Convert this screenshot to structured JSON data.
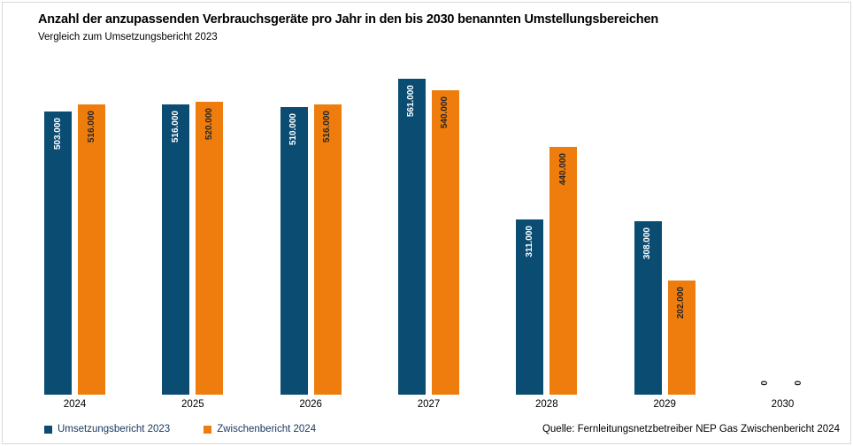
{
  "title": "Anzahl der anzupassenden Verbrauchsgeräte pro Jahr in den bis 2030 benannten Umstellungsbereichen",
  "subtitle": "Vergleich zum Umsetzungsbericht 2023",
  "source": "Quelle: Fernleitungsnetzbetreiber NEP Gas Zwischenbericht 2024",
  "colors": {
    "series1": "#0b4c72",
    "series2": "#ee7d0d",
    "label_on_series1": "#ffffff",
    "label_on_series2": "#262626",
    "zero_label": "#262626",
    "legend_text": "#17375e",
    "frame_border": "#d9d9d9"
  },
  "chart_data": {
    "type": "bar",
    "title": "Anzahl der anzupassenden Verbrauchsgeräte pro Jahr in den bis 2030 benannten Umstellungsbereichen",
    "subtitle": "Vergleich zum Umsetzungsbericht 2023",
    "categories": [
      "2024",
      "2025",
      "2026",
      "2027",
      "2028",
      "2029",
      "2030"
    ],
    "series": [
      {
        "name": "Umsetzungsbericht 2023",
        "color": "#0b4c72",
        "values": [
          503000,
          516000,
          510000,
          561000,
          311000,
          308000,
          0
        ],
        "labels": [
          "503.000",
          "516.000",
          "510.000",
          "561.000",
          "311.000",
          "308.000",
          "0"
        ]
      },
      {
        "name": "Zwischenbericht 2024",
        "color": "#ee7d0d",
        "values": [
          516000,
          520000,
          516000,
          540000,
          440000,
          202000,
          0
        ],
        "labels": [
          "516.000",
          "520.000",
          "516.000",
          "540.000",
          "440.000",
          "202.000",
          "0"
        ]
      }
    ],
    "xlabel": "",
    "ylabel": "",
    "ylim": [
      0,
      561000
    ],
    "grid": false,
    "y_axis_visible": false,
    "value_labels": "rotated-90-inside-bar-top",
    "legend_position": "bottom-left"
  }
}
